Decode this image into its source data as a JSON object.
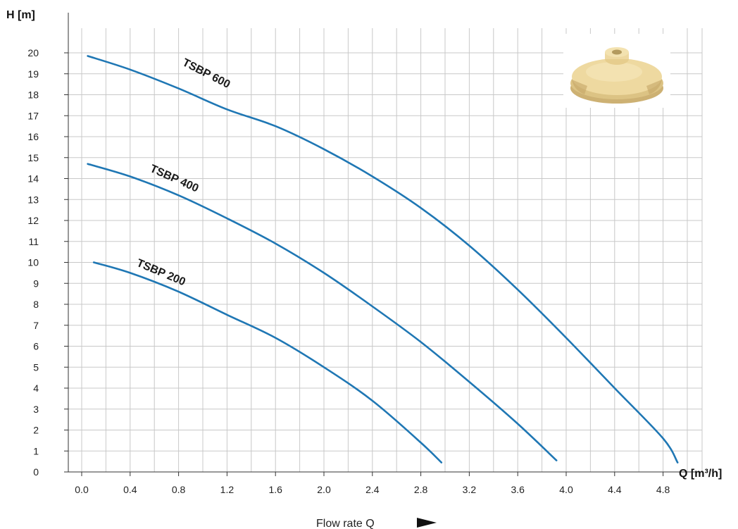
{
  "chart_data": {
    "type": "line",
    "xlabel": "Q [m³/h]",
    "ylabel": "H [m]",
    "xlim": [
      0,
      5.2
    ],
    "ylim": [
      0,
      20.5
    ],
    "x_ticks": [
      "0.0",
      "0.4",
      "0.8",
      "1.2",
      "1.6",
      "2.0",
      "2.4",
      "2.8",
      "3.2",
      "3.6",
      "4.0",
      "4.4",
      "4.8"
    ],
    "y_ticks": [
      "0",
      "1",
      "2",
      "3",
      "4",
      "5",
      "6",
      "7",
      "8",
      "9",
      "10",
      "11",
      "12",
      "13",
      "14",
      "15",
      "16",
      "17",
      "18",
      "19",
      "20"
    ],
    "grid": true,
    "series": [
      {
        "name": "TSBP 600",
        "color": "#1f77b4",
        "x": [
          0.05,
          0.4,
          0.8,
          1.2,
          1.6,
          2.0,
          2.4,
          2.8,
          3.2,
          3.6,
          4.0,
          4.4,
          4.8,
          4.92
        ],
        "y": [
          19.85,
          19.2,
          18.3,
          17.3,
          16.5,
          15.4,
          14.1,
          12.6,
          10.8,
          8.7,
          6.4,
          4.0,
          1.6,
          0.45
        ]
      },
      {
        "name": "TSBP 400",
        "color": "#1f77b4",
        "x": [
          0.05,
          0.4,
          0.8,
          1.2,
          1.6,
          2.0,
          2.4,
          2.8,
          3.2,
          3.6,
          3.92
        ],
        "y": [
          14.7,
          14.1,
          13.2,
          12.1,
          10.9,
          9.5,
          7.9,
          6.2,
          4.3,
          2.3,
          0.55
        ]
      },
      {
        "name": "TSBP 200",
        "color": "#1f77b4",
        "x": [
          0.1,
          0.4,
          0.8,
          1.2,
          1.6,
          2.0,
          2.4,
          2.8,
          2.97
        ],
        "y": [
          10.0,
          9.5,
          8.6,
          7.5,
          6.4,
          5.0,
          3.4,
          1.4,
          0.45
        ]
      }
    ]
  },
  "footer": {
    "flow_label": "Flow rate Q",
    "arrow_icon": "right-arrow-icon"
  },
  "image": {
    "icon": "impeller-photo",
    "color": "#e9d59b"
  }
}
